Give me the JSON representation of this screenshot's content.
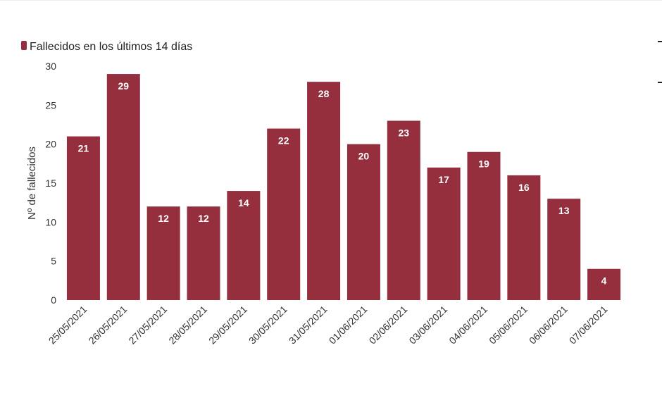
{
  "chart_data": {
    "type": "bar",
    "categories": [
      "25/05/2021",
      "26/05/2021",
      "27/05/2021",
      "28/05/2021",
      "29/05/2021",
      "30/05/2021",
      "31/05/2021",
      "01/06/2021",
      "02/06/2021",
      "03/06/2021",
      "04/06/2021",
      "05/06/2021",
      "06/06/2021",
      "07/06/2021"
    ],
    "series": [
      {
        "name": "Fallecidos en los últimos 14 días",
        "values": [
          21,
          29,
          12,
          12,
          14,
          22,
          28,
          20,
          23,
          17,
          19,
          16,
          13,
          4
        ]
      }
    ],
    "ylabel": "Nº de fallecidos",
    "ylim": [
      0,
      30
    ],
    "yticks": [
      0,
      5,
      10,
      15,
      20,
      25,
      30
    ],
    "grid": false,
    "legend": "top-left",
    "data_labels": true,
    "colors": {
      "bar": "#952f3e",
      "label": "#ffffff"
    }
  }
}
